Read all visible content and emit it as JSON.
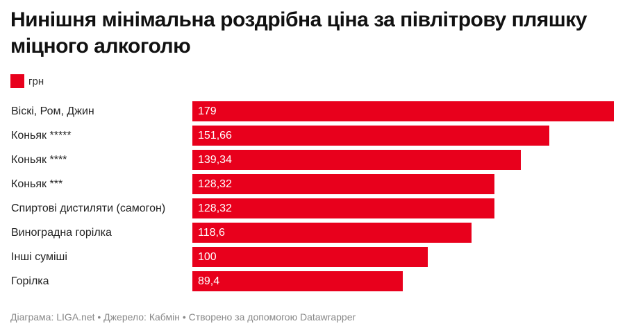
{
  "title": "Нинішня мінімальна роздрібна ціна за півлітрову пляшку міцного алкоголю",
  "footer": "Діаграма: LIGA.net • Джерело: Кабмін • Створено за допомогою Datawrapper",
  "chart_data": {
    "type": "bar",
    "orientation": "horizontal",
    "color": "#e8001c",
    "legend": [
      "грн"
    ],
    "categories": [
      "Віскі, Ром, Джин",
      "Коньяк *****",
      "Коньяк ****",
      "Коньяк ***",
      "Спиртові дистиляти (самогон)",
      "Виноградна горілка",
      "Інші суміші",
      "Горілка"
    ],
    "values": [
      179,
      151.66,
      139.34,
      128.32,
      128.32,
      118.6,
      100,
      89.4
    ],
    "value_labels": [
      "179",
      "151,66",
      "139,34",
      "128,32",
      "128,32",
      "118,6",
      "100",
      "89,4"
    ],
    "xlim": [
      0,
      179
    ]
  }
}
